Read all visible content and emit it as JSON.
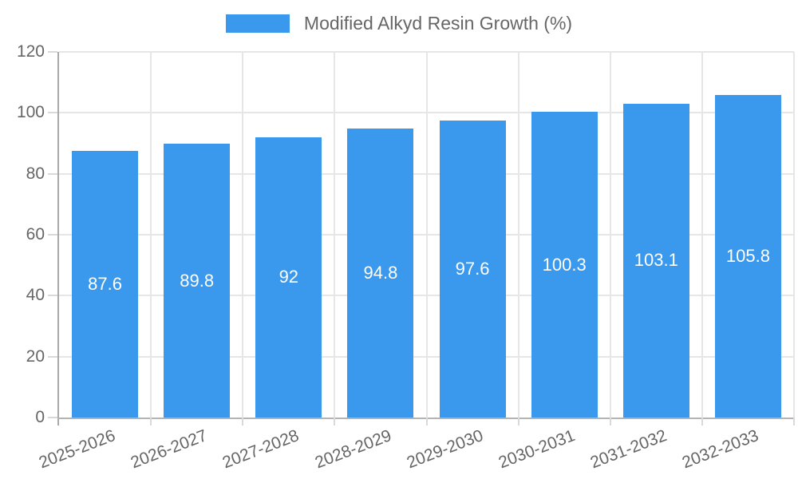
{
  "legend": {
    "label": "Modified Alkyd Resin Growth (%)",
    "swatch_color": "#3a99ec"
  },
  "chart_data": {
    "type": "bar",
    "title": "Modified Alkyd Resin Growth (%)",
    "categories": [
      "2025-2026",
      "2026-2027",
      "2027-2028",
      "2028-2029",
      "2029-2030",
      "2030-2031",
      "2031-2032",
      "2032-2033"
    ],
    "values": [
      87.6,
      89.8,
      92,
      94.8,
      97.6,
      100.3,
      103.1,
      105.8
    ],
    "value_labels": [
      "87.6",
      "89.8",
      "92",
      "94.8",
      "97.6",
      "100.3",
      "103.1",
      "105.8"
    ],
    "xlabel": "",
    "ylabel": "",
    "ylim": [
      0,
      120
    ],
    "yticks": [
      0,
      20,
      40,
      60,
      80,
      100,
      120
    ],
    "grid": true,
    "legend_position": "top",
    "value_labels_inside_bars": true,
    "colors": {
      "bar": "#3a99ec",
      "value_label": "#ffffff",
      "axis_text": "#666666",
      "gridline": "#e6e6e6",
      "axis_line": "#adadad",
      "background": "#ffffff"
    }
  }
}
